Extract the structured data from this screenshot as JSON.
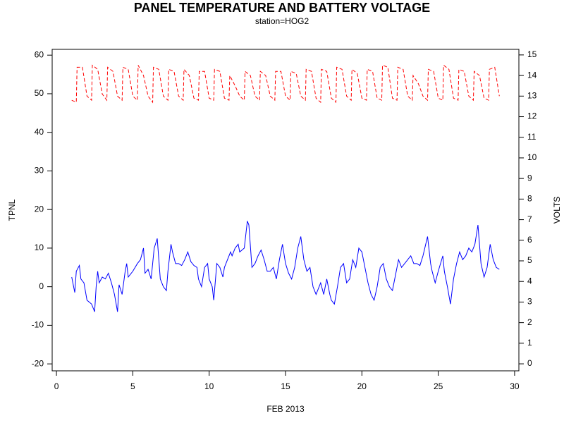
{
  "chart_data": {
    "type": "line",
    "title": "PANEL TEMPERATURE AND BATTERY VOLTAGE",
    "subtitle": "station=HOG2",
    "xlabel": "FEB 2013",
    "ylabel": "TPNL",
    "y2label": "VOLTS",
    "xlim": [
      -0.28,
      30.28
    ],
    "xticks": [
      0,
      5,
      10,
      15,
      20,
      25,
      30
    ],
    "ylim": [
      -21.8,
      61.5
    ],
    "yticks": [
      -20,
      -10,
      0,
      10,
      20,
      30,
      40,
      50,
      60
    ],
    "y2lim": [
      -0.34,
      15.27
    ],
    "y2ticks": [
      0,
      1,
      2,
      3,
      4,
      5,
      6,
      7,
      8,
      9,
      10,
      11,
      12,
      13,
      14,
      15
    ],
    "series": [
      {
        "name": "TPNL",
        "color": "#0000ff",
        "linestyle": "solid",
        "x": [
          1.0,
          1.2,
          1.3,
          1.5,
          1.6,
          1.8,
          2.0,
          2.3,
          2.5,
          2.6,
          2.7,
          2.8,
          3.0,
          3.2,
          3.4,
          3.6,
          3.8,
          4.0,
          4.1,
          4.3,
          4.5,
          4.6,
          4.7,
          5.0,
          5.3,
          5.5,
          5.7,
          5.8,
          6.0,
          6.2,
          6.4,
          6.6,
          6.8,
          7.0,
          7.2,
          7.3,
          7.5,
          7.6,
          7.8,
          8.0,
          8.2,
          8.4,
          8.6,
          8.8,
          9.0,
          9.2,
          9.3,
          9.5,
          9.7,
          9.9,
          10.0,
          10.2,
          10.3,
          10.5,
          10.7,
          10.9,
          11.0,
          11.2,
          11.4,
          11.5,
          11.7,
          11.9,
          12.0,
          12.3,
          12.5,
          12.6,
          12.8,
          13.0,
          13.2,
          13.4,
          13.6,
          13.8,
          14.0,
          14.2,
          14.4,
          14.6,
          14.8,
          15.0,
          15.2,
          15.4,
          15.6,
          15.8,
          16.0,
          16.2,
          16.4,
          16.6,
          16.8,
          17.0,
          17.3,
          17.5,
          17.7,
          17.9,
          18.0,
          18.2,
          18.4,
          18.6,
          18.8,
          19.0,
          19.2,
          19.4,
          19.6,
          19.8,
          20.0,
          20.2,
          20.4,
          20.6,
          20.8,
          21.0,
          21.2,
          21.4,
          21.6,
          21.8,
          22.0,
          22.2,
          22.4,
          22.6,
          22.8,
          23.0,
          23.2,
          23.4,
          23.6,
          23.8,
          24.0,
          24.3,
          24.5,
          24.6,
          24.8,
          25.0,
          25.3,
          25.4,
          25.6,
          25.8,
          26.0,
          26.2,
          26.4,
          26.6,
          26.8,
          27.0,
          27.2,
          27.4,
          27.6,
          27.8,
          28.0,
          28.2,
          28.4,
          28.6,
          28.8,
          29.0
        ],
        "values": [
          2.5,
          -1.5,
          4,
          5.5,
          2,
          1,
          -3.5,
          -4.5,
          -6.5,
          0,
          4,
          1,
          2.5,
          2,
          3.5,
          1,
          -2,
          -6.5,
          0.5,
          -2,
          4,
          6,
          2.5,
          4,
          6,
          7,
          10,
          3.5,
          4.5,
          2,
          10,
          12.5,
          2,
          0,
          -1,
          4,
          11,
          9,
          6,
          6,
          5.5,
          7,
          9,
          6.5,
          5.5,
          5,
          2,
          0,
          5,
          6,
          2,
          0,
          -3.5,
          6,
          5,
          2.5,
          5,
          7,
          9,
          8,
          10,
          11,
          9,
          10,
          17,
          16,
          5,
          6,
          8,
          9.5,
          7,
          4,
          4,
          5,
          2,
          7,
          11,
          6,
          3.5,
          2,
          5,
          10,
          13,
          7,
          4,
          5,
          0,
          -2,
          1,
          -2,
          2,
          -2,
          -3.5,
          -4.5,
          0,
          5,
          6,
          1,
          2,
          7,
          5,
          10,
          9,
          5,
          1,
          -2,
          -3.5,
          0,
          5,
          6,
          2,
          0,
          -1,
          3,
          7,
          5,
          6,
          7,
          8,
          6,
          6,
          5.5,
          8,
          13,
          6,
          4,
          1,
          4,
          8,
          4,
          0,
          -4.5,
          2,
          6,
          9,
          7,
          8,
          10,
          9,
          11,
          16,
          6,
          2.5,
          5,
          11,
          7,
          5,
          4.5
        ]
      },
      {
        "name": "VOLTS",
        "color": "#ff0000",
        "linestyle": "dashed",
        "axis": "y2",
        "x": [
          1,
          1.3,
          1.35,
          1.7,
          2,
          2.3,
          2.35,
          2.7,
          3,
          3.3,
          3.35,
          3.7,
          4,
          4.3,
          4.35,
          4.7,
          5,
          5.3,
          5.35,
          5.7,
          6,
          6.3,
          6.35,
          6.7,
          7,
          7.3,
          7.35,
          7.7,
          8,
          8.3,
          8.35,
          8.7,
          9,
          9.3,
          9.35,
          9.7,
          10,
          10.3,
          10.35,
          10.7,
          11,
          11.3,
          11.35,
          11.7,
          12,
          12.3,
          12.35,
          12.7,
          13,
          13.3,
          13.35,
          13.7,
          14,
          14.3,
          14.35,
          14.7,
          15,
          15.3,
          15.35,
          15.7,
          16,
          16.3,
          16.35,
          16.7,
          17,
          17.3,
          17.35,
          17.7,
          18,
          18.3,
          18.35,
          18.7,
          19,
          19.3,
          19.35,
          19.7,
          20,
          20.3,
          20.35,
          20.7,
          21,
          21.3,
          21.35,
          21.7,
          22,
          22.3,
          22.35,
          22.7,
          23,
          23.3,
          23.35,
          23.7,
          24,
          24.3,
          24.35,
          24.7,
          25,
          25.3,
          25.35,
          25.7,
          26,
          26.3,
          26.35,
          26.7,
          27,
          27.3,
          27.35,
          27.7,
          28,
          28.3,
          28.35,
          28.7,
          29
        ],
        "values": [
          12.8,
          12.7,
          14.4,
          14.4,
          13.0,
          12.8,
          14.5,
          14.3,
          13.1,
          12.8,
          14.4,
          14.2,
          13.0,
          12.8,
          14.4,
          14.3,
          13.0,
          12.8,
          14.5,
          14.0,
          13.0,
          12.7,
          14.4,
          14.3,
          13.0,
          12.8,
          14.3,
          14.2,
          13.0,
          12.8,
          14.3,
          14.0,
          12.9,
          12.8,
          14.2,
          14.2,
          12.9,
          12.8,
          14.3,
          14.2,
          12.9,
          12.8,
          14.0,
          13.5,
          13.0,
          12.8,
          14.2,
          14.0,
          13.0,
          12.8,
          14.2,
          14.0,
          13.0,
          12.8,
          14.2,
          14.2,
          13.0,
          12.8,
          14.2,
          14.1,
          13.0,
          12.8,
          14.3,
          14.2,
          12.9,
          12.7,
          14.3,
          14.2,
          12.9,
          12.7,
          14.4,
          14.3,
          13.0,
          12.8,
          14.3,
          14.1,
          12.9,
          12.8,
          14.3,
          14.2,
          12.9,
          12.8,
          14.5,
          14.4,
          12.9,
          12.8,
          14.4,
          14.3,
          13.0,
          12.8,
          14.0,
          13.6,
          13.0,
          12.8,
          14.3,
          14.2,
          12.9,
          12.8,
          14.5,
          14.3,
          12.9,
          12.8,
          14.3,
          14.2,
          13.0,
          12.8,
          14.2,
          14.0,
          12.9,
          12.8,
          14.3,
          14.4,
          13.0
        ]
      }
    ]
  }
}
